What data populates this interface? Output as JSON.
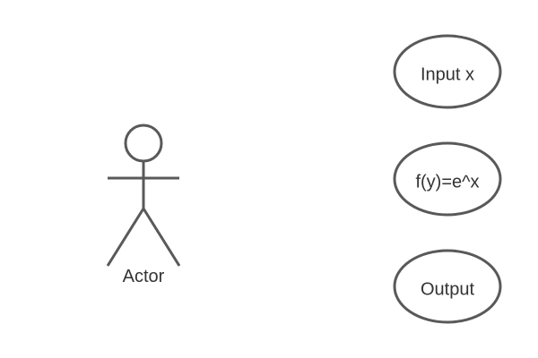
{
  "diagram": {
    "actor": {
      "label": "Actor"
    },
    "use_cases": [
      {
        "label": "Input x"
      },
      {
        "label": "f(y)=e^x"
      },
      {
        "label": "Output"
      }
    ]
  },
  "colors": {
    "stroke": "#595959",
    "text": "#333333",
    "background": "#ffffff"
  }
}
